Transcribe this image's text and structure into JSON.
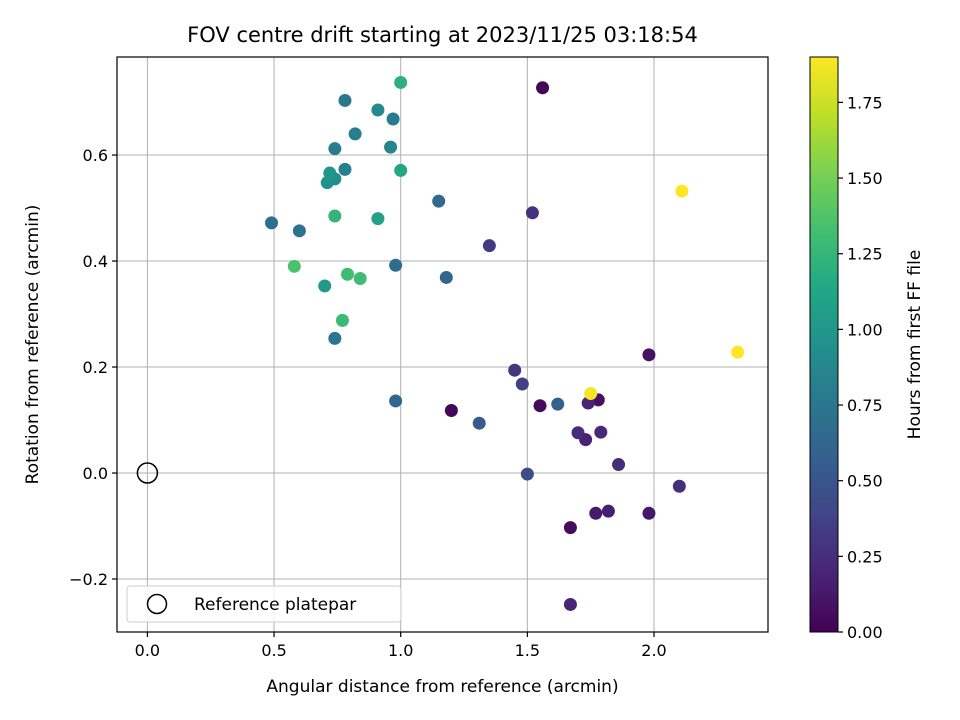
{
  "chart_data": {
    "type": "scatter",
    "title": "FOV centre drift starting at 2023/11/25 03:18:54",
    "xlabel": "Angular distance from reference (arcmin)",
    "ylabel": "Rotation from reference (arcmin)",
    "xlim": [
      -0.12,
      2.45
    ],
    "ylim": [
      -0.3,
      0.785
    ],
    "xticks": [
      0.0,
      0.5,
      1.0,
      1.5,
      2.0
    ],
    "xtick_labels": [
      "0.0",
      "0.5",
      "1.0",
      "1.5",
      "2.0"
    ],
    "yticks": [
      -0.2,
      0.0,
      0.2,
      0.4,
      0.6
    ],
    "ytick_labels": [
      "−0.2",
      "0.0",
      "0.2",
      "0.4",
      "0.6"
    ],
    "grid": true,
    "colormap": "viridis",
    "colorbar": {
      "label": "Hours from first FF file",
      "range": [
        0.0,
        1.9
      ],
      "ticks": [
        0.0,
        0.25,
        0.5,
        0.75,
        1.0,
        1.25,
        1.5,
        1.75
      ],
      "tick_labels": [
        "0.00",
        "0.25",
        "0.50",
        "0.75",
        "1.00",
        "1.25",
        "1.50",
        "1.75"
      ]
    },
    "legend": {
      "placement": "lower-left",
      "entries": [
        "Reference platepar"
      ]
    },
    "reference": {
      "x": 0.0,
      "y": 0.0,
      "label": "Reference platepar"
    },
    "points": [
      {
        "x": 1.56,
        "y": 0.727,
        "c": 0.02
      },
      {
        "x": 1.2,
        "y": 0.118,
        "c": 0.03
      },
      {
        "x": 1.55,
        "y": 0.127,
        "c": 0.05
      },
      {
        "x": 1.67,
        "y": -0.103,
        "c": 0.06
      },
      {
        "x": 1.78,
        "y": 0.138,
        "c": 0.08
      },
      {
        "x": 1.98,
        "y": 0.223,
        "c": 0.09
      },
      {
        "x": 1.98,
        "y": -0.076,
        "c": 0.12
      },
      {
        "x": 1.77,
        "y": -0.076,
        "c": 0.14
      },
      {
        "x": 1.82,
        "y": -0.072,
        "c": 0.16
      },
      {
        "x": 1.73,
        "y": 0.063,
        "c": 0.18
      },
      {
        "x": 1.74,
        "y": 0.132,
        "c": 0.19
      },
      {
        "x": 1.67,
        "y": -0.248,
        "c": 0.2
      },
      {
        "x": 1.79,
        "y": 0.077,
        "c": 0.22
      },
      {
        "x": 1.7,
        "y": 0.076,
        "c": 0.24
      },
      {
        "x": 1.86,
        "y": 0.016,
        "c": 0.25
      },
      {
        "x": 2.1,
        "y": -0.025,
        "c": 0.26
      },
      {
        "x": 1.52,
        "y": 0.491,
        "c": 0.27
      },
      {
        "x": 1.45,
        "y": 0.194,
        "c": 0.29
      },
      {
        "x": 1.35,
        "y": 0.429,
        "c": 0.32
      },
      {
        "x": 1.48,
        "y": 0.168,
        "c": 0.35
      },
      {
        "x": 1.5,
        "y": -0.002,
        "c": 0.45
      },
      {
        "x": 1.31,
        "y": 0.094,
        "c": 0.55
      },
      {
        "x": 1.62,
        "y": 0.13,
        "c": 0.58
      },
      {
        "x": 1.18,
        "y": 0.369,
        "c": 0.62
      },
      {
        "x": 0.98,
        "y": 0.136,
        "c": 0.63
      },
      {
        "x": 1.15,
        "y": 0.513,
        "c": 0.65
      },
      {
        "x": 0.98,
        "y": 0.392,
        "c": 0.68
      },
      {
        "x": 0.49,
        "y": 0.472,
        "c": 0.7
      },
      {
        "x": 0.6,
        "y": 0.457,
        "c": 0.72
      },
      {
        "x": 0.74,
        "y": 0.254,
        "c": 0.74
      },
      {
        "x": 0.78,
        "y": 0.703,
        "c": 0.76
      },
      {
        "x": 0.97,
        "y": 0.668,
        "c": 0.78
      },
      {
        "x": 0.74,
        "y": 0.612,
        "c": 0.79
      },
      {
        "x": 0.82,
        "y": 0.64,
        "c": 0.8
      },
      {
        "x": 0.78,
        "y": 0.573,
        "c": 0.82
      },
      {
        "x": 0.96,
        "y": 0.615,
        "c": 0.85
      },
      {
        "x": 0.91,
        "y": 0.685,
        "c": 0.9
      },
      {
        "x": 0.74,
        "y": 0.555,
        "c": 0.92
      },
      {
        "x": 0.71,
        "y": 0.548,
        "c": 0.95
      },
      {
        "x": 0.72,
        "y": 0.566,
        "c": 1.0
      },
      {
        "x": 0.7,
        "y": 0.353,
        "c": 1.02
      },
      {
        "x": 0.91,
        "y": 0.48,
        "c": 1.08
      },
      {
        "x": 1.0,
        "y": 0.571,
        "c": 1.12
      },
      {
        "x": 1.0,
        "y": 0.737,
        "c": 1.2
      },
      {
        "x": 0.74,
        "y": 0.485,
        "c": 1.25
      },
      {
        "x": 0.77,
        "y": 0.288,
        "c": 1.28
      },
      {
        "x": 0.79,
        "y": 0.375,
        "c": 1.3
      },
      {
        "x": 0.84,
        "y": 0.367,
        "c": 1.3
      },
      {
        "x": 0.58,
        "y": 0.39,
        "c": 1.35
      },
      {
        "x": 1.75,
        "y": 0.15,
        "c": 1.88
      },
      {
        "x": 2.11,
        "y": 0.532,
        "c": 1.9
      },
      {
        "x": 2.33,
        "y": 0.228,
        "c": 1.9
      }
    ]
  }
}
